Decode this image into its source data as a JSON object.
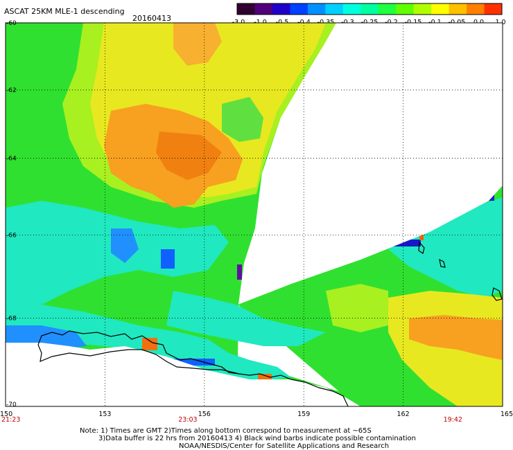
{
  "header": {
    "product": "ASCAT 25KM MLE-1 descending",
    "date": "20160413"
  },
  "colorbar": {
    "colors": [
      "#300030",
      "#50007a",
      "#2000c8",
      "#0040ff",
      "#0090ff",
      "#00d0ff",
      "#00ffe0",
      "#00ffa0",
      "#20ff40",
      "#60ff00",
      "#b0ff00",
      "#ffff00",
      "#ffc000",
      "#ff8000",
      "#ff3000"
    ],
    "labels": [
      "-3.0",
      "-1.0",
      "-0.5",
      "-0.4",
      "-0.35",
      "-0.3",
      "-0.25",
      "-0.2",
      "-0.15",
      "-0.1",
      "-0.05",
      "0.0",
      "1.0"
    ]
  },
  "map": {
    "lat_labels": [
      "-60",
      "-62",
      "-64",
      "-66",
      "-68",
      "-70"
    ],
    "lon_labels": [
      "150",
      "153",
      "156",
      "159",
      "162",
      "165"
    ],
    "lon_range": [
      150,
      165
    ],
    "lat_range": [
      -60,
      -70
    ],
    "times": [
      {
        "label": "21:23",
        "lon": 150
      },
      {
        "label": "23:03",
        "lon": 155.5
      },
      {
        "label": "19:42",
        "lon": 163.5
      }
    ],
    "time_color": "#c00000"
  },
  "notes": {
    "line1": "Note: 1) Times are GMT 2)Times along bottom correspond to measurement at ~65S",
    "line2": "3)Data buffer is 22 hrs from 20160413 4) Black wind barbs indicate possible contamination",
    "line3": "NOAA/NESDIS/Center for Satellite Applications and Research"
  }
}
